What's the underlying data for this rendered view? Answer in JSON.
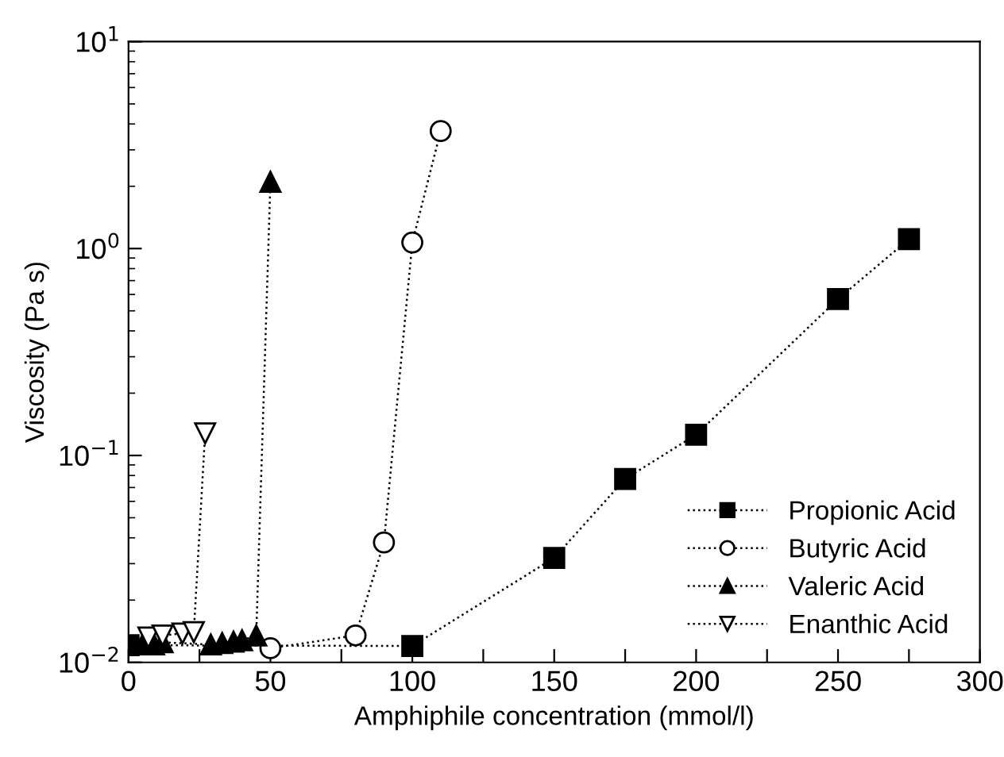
{
  "chart_data": {
    "type": "line",
    "xlabel": "Amphiphile concentration (mmol/l)",
    "ylabel": "Viscosity (Pa s)",
    "xlim": [
      0,
      300
    ],
    "ylim": [
      0.01,
      10
    ],
    "log": "y",
    "xticks": [
      0,
      {
        "value": 25,
        "label": null
      },
      50,
      {
        "value": 75,
        "label": null
      },
      100,
      {
        "value": 125,
        "label": null
      },
      150,
      {
        "value": 175,
        "label": null
      },
      200,
      {
        "value": 225,
        "label": null
      },
      250,
      {
        "value": 275,
        "label": null
      },
      300
    ],
    "yticks": [
      {
        "value": 0.01,
        "label": "10$^{−2}$"
      },
      {
        "value": 0.1,
        "label": "10$^{−1}$"
      },
      {
        "value": 1,
        "label": "10$^{0}$"
      },
      {
        "value": 10,
        "label": "10$^{1}$"
      }
    ],
    "line_style": "dotted",
    "legend": "bottom right",
    "grid": false,
    "series": [
      {
        "name": "Propionic Acid",
        "color": "#000000",
        "marker": "square",
        "x": [
          0,
          100,
          150,
          175,
          200,
          250,
          275
        ],
        "values": [
          0.0121,
          0.012,
          0.032,
          0.077,
          0.126,
          0.57,
          1.11
        ]
      },
      {
        "name": "Butyric Acid",
        "color": "#000000",
        "marker": "circle",
        "colors": [
          "#ffffff",
          "#ffffff",
          "#ffffff",
          "#ffffff",
          "#ffffff"
        ],
        "x": [
          50,
          80,
          90,
          100,
          110
        ],
        "values": [
          0.0117,
          0.0135,
          0.038,
          1.07,
          3.7
        ]
      },
      {
        "name": "Valeric Acid",
        "color": "#000000",
        "marker": "triangle",
        "x": [
          5,
          9,
          12,
          29,
          33,
          37,
          40,
          45,
          50
        ],
        "values": [
          0.0122,
          0.0122,
          0.0125,
          0.0122,
          0.0124,
          0.0126,
          0.0128,
          0.0135,
          2.1
        ]
      },
      {
        "name": "Enanthic Acid",
        "color": "#000000",
        "marker": "triangle_down",
        "colors": [
          "#ffffff",
          "#ffffff",
          "#ffffff",
          "#ffffff",
          "#ffffff"
        ],
        "x": [
          7,
          12,
          19,
          23,
          27
        ],
        "values": [
          0.0132,
          0.0135,
          0.0138,
          0.014,
          0.128
        ]
      }
    ]
  }
}
